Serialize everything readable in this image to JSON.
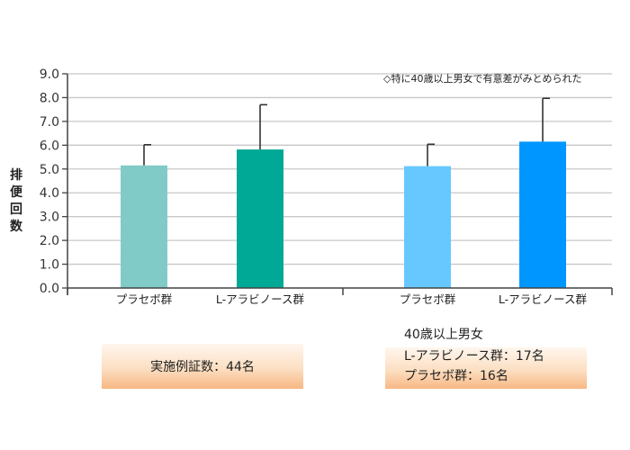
{
  "chart_data": {
    "type": "bar",
    "ylabel": "排便回数",
    "ylim": [
      0,
      9
    ],
    "yticks": [
      "0.0",
      "1.0",
      "2.0",
      "3.0",
      "4.0",
      "5.0",
      "6.0",
      "7.0",
      "8.0",
      "9.0"
    ],
    "grid": true,
    "annotation": "◇特に40歳以上男女で有意差がみとめられた",
    "bars": [
      {
        "label": "プラセボ群",
        "value": 5.15,
        "error_upper": 6.02,
        "color": "#80cbc7"
      },
      {
        "label": "L-アラビノース群",
        "value": 5.82,
        "error_upper": 7.7,
        "color": "#00a896"
      },
      {
        "label": "プラセボ群",
        "value": 5.12,
        "error_upper": 6.04,
        "color": "#66c8ff"
      },
      {
        "label": "L-アラビノース群",
        "value": 6.15,
        "error_upper": 7.97,
        "color": "#0096ff"
      }
    ]
  },
  "notes": {
    "left_box": "実施例証数：44名",
    "right_title": "40歳以上男女",
    "right_line1": "L-アラビノース群：17名",
    "right_line2": "プラセボ群：16名"
  }
}
